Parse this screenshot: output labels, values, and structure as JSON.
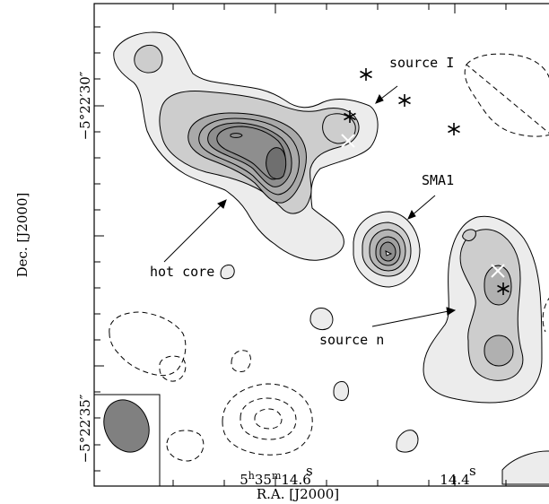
{
  "chart_data": {
    "type": "contour",
    "xlabel": "R.A. [J2000]",
    "ylabel": "Dec. [J2000]",
    "x_ticks": [
      {
        "value": 14.6,
        "label_main": "5",
        "label_h": "h",
        "label_mid": "35",
        "label_m": "m",
        "label_end": "14.6",
        "label_s": "s"
      },
      {
        "value": 14.4,
        "label_main": "14.4",
        "label_s": "s"
      }
    ],
    "y_ticks": [
      {
        "value": 30,
        "label": "−5°22′30″"
      },
      {
        "value": 35,
        "label": "−5°22′35″"
      }
    ],
    "annotations": {
      "source_i": "source I",
      "sma1": "SMA1",
      "hot_core": "hot core",
      "source_n": "source n"
    },
    "markers": {
      "star_count": 6,
      "white_cross_count": 2
    },
    "beam": "filled ellipse in lower-left corner",
    "grid": false
  }
}
